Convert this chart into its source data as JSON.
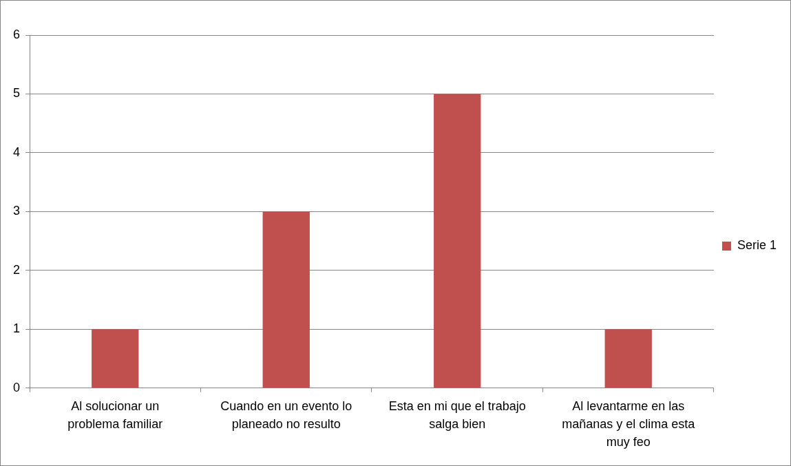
{
  "chart_data": {
    "type": "bar",
    "categories": [
      "Al solucionar un problema familiar",
      "Cuando en un evento lo planeado no resulto",
      "Esta en mi que el trabajo salga bien",
      "Al levantarme en las mañanas y el clima esta muy feo"
    ],
    "series": [
      {
        "name": "Serie 1",
        "color": "#c0504d",
        "values": [
          1,
          3,
          5,
          1
        ]
      }
    ],
    "ylim": [
      0,
      6
    ],
    "yticks": [
      0,
      1,
      2,
      3,
      4,
      5,
      6
    ],
    "grid": "y",
    "legend": "right"
  }
}
